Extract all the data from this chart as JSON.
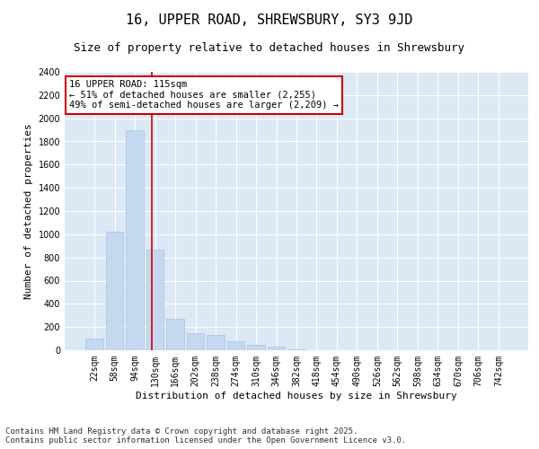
{
  "title1": "16, UPPER ROAD, SHREWSBURY, SY3 9JD",
  "title2": "Size of property relative to detached houses in Shrewsbury",
  "xlabel": "Distribution of detached houses by size in Shrewsbury",
  "ylabel": "Number of detached properties",
  "categories": [
    "22sqm",
    "58sqm",
    "94sqm",
    "130sqm",
    "166sqm",
    "202sqm",
    "238sqm",
    "274sqm",
    "310sqm",
    "346sqm",
    "382sqm",
    "418sqm",
    "454sqm",
    "490sqm",
    "526sqm",
    "562sqm",
    "598sqm",
    "634sqm",
    "670sqm",
    "706sqm",
    "742sqm"
  ],
  "values": [
    100,
    1020,
    1900,
    870,
    270,
    150,
    130,
    80,
    50,
    30,
    10,
    0,
    0,
    0,
    0,
    0,
    0,
    0,
    0,
    0,
    0
  ],
  "bar_color": "#c5d8f0",
  "bar_edgecolor": "#a8c4e0",
  "vline_color": "#cc0000",
  "vline_pos": 2.85,
  "annotation_text": "16 UPPER ROAD: 115sqm\n← 51% of detached houses are smaller (2,255)\n49% of semi-detached houses are larger (2,209) →",
  "annotation_box_color": "#cc0000",
  "ylim": [
    0,
    2400
  ],
  "yticks": [
    0,
    200,
    400,
    600,
    800,
    1000,
    1200,
    1400,
    1600,
    1800,
    2000,
    2200,
    2400
  ],
  "background_color": "#dce9f5",
  "grid_color": "#ffffff",
  "footer": "Contains HM Land Registry data © Crown copyright and database right 2025.\nContains public sector information licensed under the Open Government Licence v3.0.",
  "title1_fontsize": 11,
  "title2_fontsize": 9,
  "xlabel_fontsize": 8,
  "ylabel_fontsize": 8,
  "tick_fontsize": 7,
  "annotation_fontsize": 7.5,
  "footer_fontsize": 6.5
}
